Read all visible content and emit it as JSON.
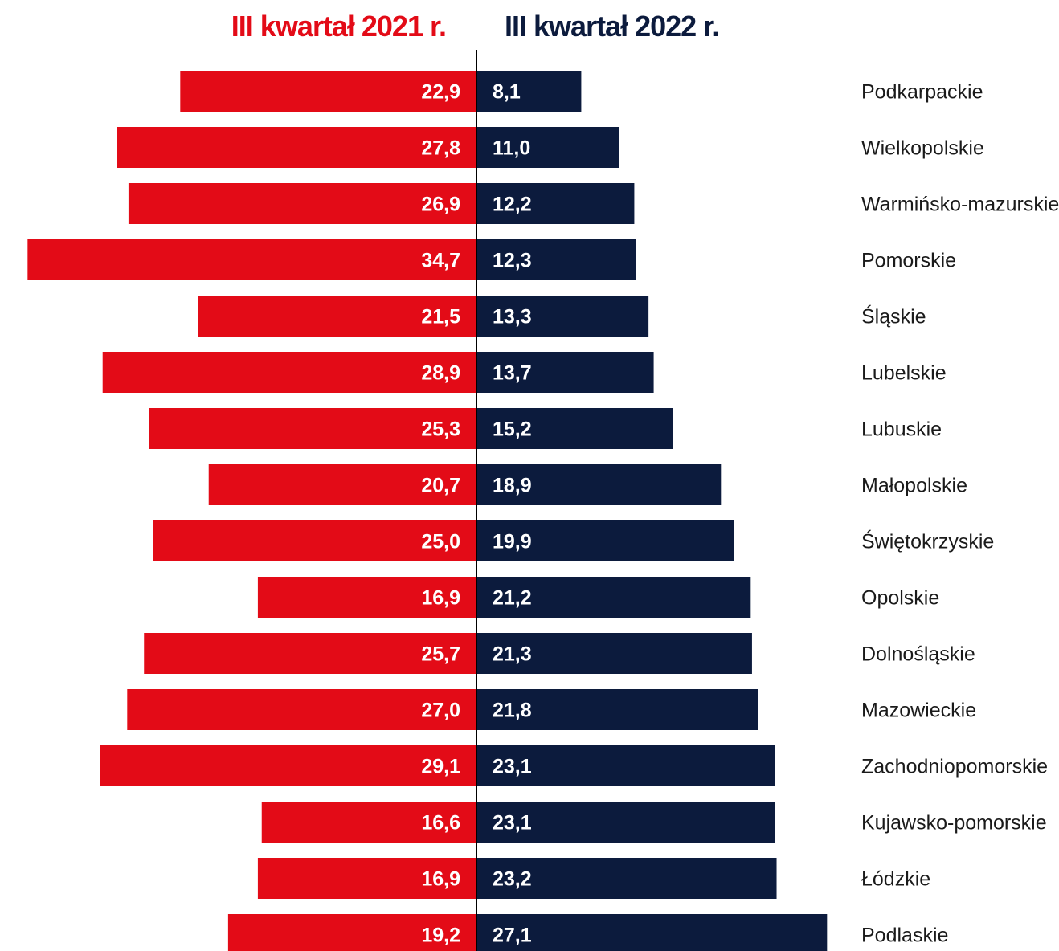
{
  "colors": {
    "series_2021": "#e30b17",
    "series_2022": "#0c1b3d",
    "axis_line": "#000000",
    "value_label": "#ffffff",
    "region_label": "#1a1a1a"
  },
  "chart_data": {
    "type": "bar",
    "orientation": "horizontal-diverging",
    "categories": [
      "Podkarpackie",
      "Wielkopolskie",
      "Warmińsko-mazurskie",
      "Pomorskie",
      "Śląskie",
      "Lubelskie",
      "Lubuskie",
      "Małopolskie",
      "Świętokrzyskie",
      "Opolskie",
      "Dolnośląskie",
      "Mazowieckie",
      "Zachodniopomorskie",
      "Kujawsko-pomorskie",
      "Łódzkie",
      "Podlaskie"
    ],
    "series": [
      {
        "name": "III kwartał 2021 r.",
        "side": "left",
        "color": "#e30b17",
        "values": [
          22.9,
          27.8,
          26.9,
          34.7,
          21.5,
          28.9,
          25.3,
          20.7,
          25.0,
          16.9,
          25.7,
          27.0,
          29.1,
          16.6,
          16.9,
          19.2
        ],
        "labels": [
          "22,9",
          "27,8",
          "26,9",
          "34,7",
          "21,5",
          "28,9",
          "25,3",
          "20,7",
          "25,0",
          "16,9",
          "25,7",
          "27,0",
          "29,1",
          "16,6",
          "16,9",
          "19,2"
        ]
      },
      {
        "name": "III kwartał 2022 r.",
        "side": "right",
        "color": "#0c1b3d",
        "values": [
          8.1,
          11.0,
          12.2,
          12.3,
          13.3,
          13.7,
          15.2,
          18.9,
          19.9,
          21.2,
          21.3,
          21.8,
          23.1,
          23.1,
          23.2,
          27.1
        ],
        "labels": [
          "8,1",
          "11,0",
          "12,2",
          "12,3",
          "13,3",
          "13,7",
          "15,2",
          "18,9",
          "19,9",
          "21,2",
          "21,3",
          "21,8",
          "23,1",
          "23,1",
          "23,2",
          "27,1"
        ]
      }
    ],
    "data_labels": "inside-bar-at-center",
    "legend": "top",
    "grid": false
  }
}
